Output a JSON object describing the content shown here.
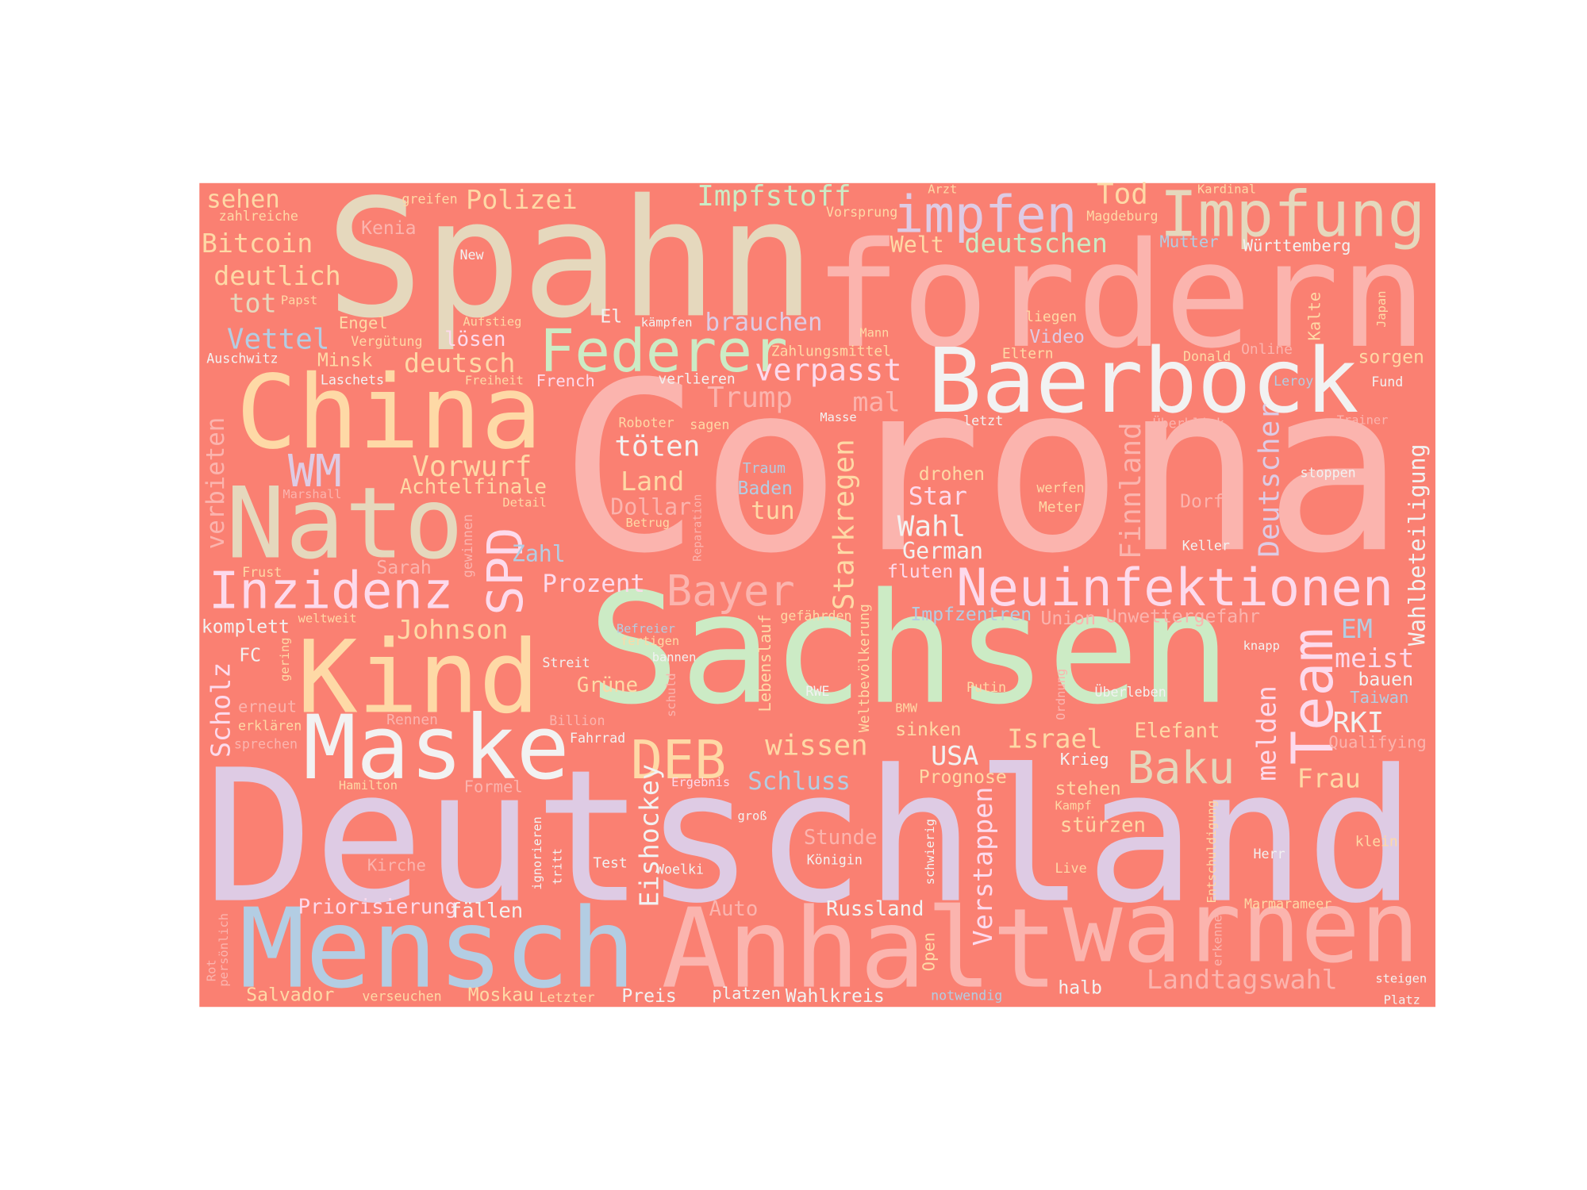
{
  "words": [
    "Corona",
    "Deutschland",
    "Spahn",
    "fordern",
    "Sachsen",
    "Baerbock",
    "China",
    "Nato",
    "Kind",
    "Maske",
    "Mensch",
    "Anhalt",
    "warnen",
    "Impfung",
    "impfen",
    "Federer",
    "Neuinfektionen",
    "Inzidenz",
    "Polizei",
    "Impfstoff",
    "Tod",
    "sehen",
    "greifen",
    "Arzt",
    "Kardinal",
    "zahlreiche",
    "Vorsprung",
    "Magdeburg",
    "Kenia",
    "Bitcoin",
    "Welt",
    "deutschen",
    "Mutter",
    "Württemberg",
    "New",
    "deutlich",
    "tot",
    "Papst",
    "Aufstieg",
    "El",
    "kämpfen",
    "liegen",
    "Engel",
    "brauchen",
    "Vettel",
    "lösen",
    "Vergütung",
    "Mann",
    "Video",
    "Kalte",
    "Japan",
    "Zahlungsmittel",
    "Eltern",
    "Online",
    "Donald",
    "sorgen",
    "Auschwitz",
    "Minsk",
    "deutsch",
    "verpasst",
    "Laschets",
    "Freiheit",
    "French",
    "verlieren",
    "Leroy",
    "Fund",
    "Wahlbeteiligung",
    "Trump",
    "mal",
    "Masse",
    "letzt",
    "Überblick",
    "Trainer",
    "verbieten",
    "Roboter",
    "sagen",
    "töten",
    "Starkregen",
    "Finnland",
    "Deutscher",
    "WM",
    "Vorwurf",
    "Traum",
    "drohen",
    "stoppen",
    "Land",
    "Achtelfinale",
    "Baden",
    "werfen",
    "Marshall",
    "Star",
    "Dorf",
    "Reparation",
    "Dollar",
    "tun",
    "Detail",
    "Meter",
    "Betrug",
    "Wahl",
    "SPD",
    "gewinnen",
    "Keller",
    "German",
    "Zahl",
    "Sarah",
    "Weltbevölkerung",
    "Frust",
    "fluten",
    "Prozent",
    "Bayer",
    "weltweit",
    "Impfzentren",
    "Union",
    "Unwettergefahr",
    "gefährden",
    "Lebenslauf",
    "EM",
    "komplett",
    "Johnson",
    "Befreier",
    "fertigen",
    "Team",
    "Scholz",
    "FC",
    "gering",
    "knapp",
    "bannen",
    "meist",
    "Streit",
    "melden",
    "Ordnung",
    "bauen",
    "Grüne",
    "schuld",
    "RWE",
    "Putin",
    "Überleben",
    "Taiwan",
    "erneut",
    "BMW",
    "Billion",
    "Rennen",
    "RKI",
    "erklären",
    "sinken",
    "Elefant",
    "Fahrrad",
    "Israel",
    "Qualifying",
    "sprechen",
    "wissen",
    "DEB",
    "USA",
    "Krieg",
    "Baku",
    "Prognose",
    "Eishockey",
    "Ergebnis",
    "Hamilton",
    "Schluss",
    "Formel",
    "Frau",
    "stehen",
    "Kampf",
    "groß",
    "Verstappen",
    "stürzen",
    "Stunde",
    "Entschuldigung",
    "klein",
    "ignorieren",
    "tritt",
    "schwierig",
    "Herr",
    "Königin",
    "Kirche",
    "Test",
    "Woelki",
    "Live",
    "Priorisierung",
    "fällen",
    "Auto",
    "Russland",
    "Marmarameer",
    "Open",
    "erkennen",
    "persönlich",
    "Rot",
    "Landtagswahl",
    "Salvador",
    "verseuchen",
    "Moskau",
    "Letzter",
    "Preis",
    "platzen",
    "Wahlkreis",
    "notwendig",
    "halb",
    "steigen",
    "Platz"
  ]
}
